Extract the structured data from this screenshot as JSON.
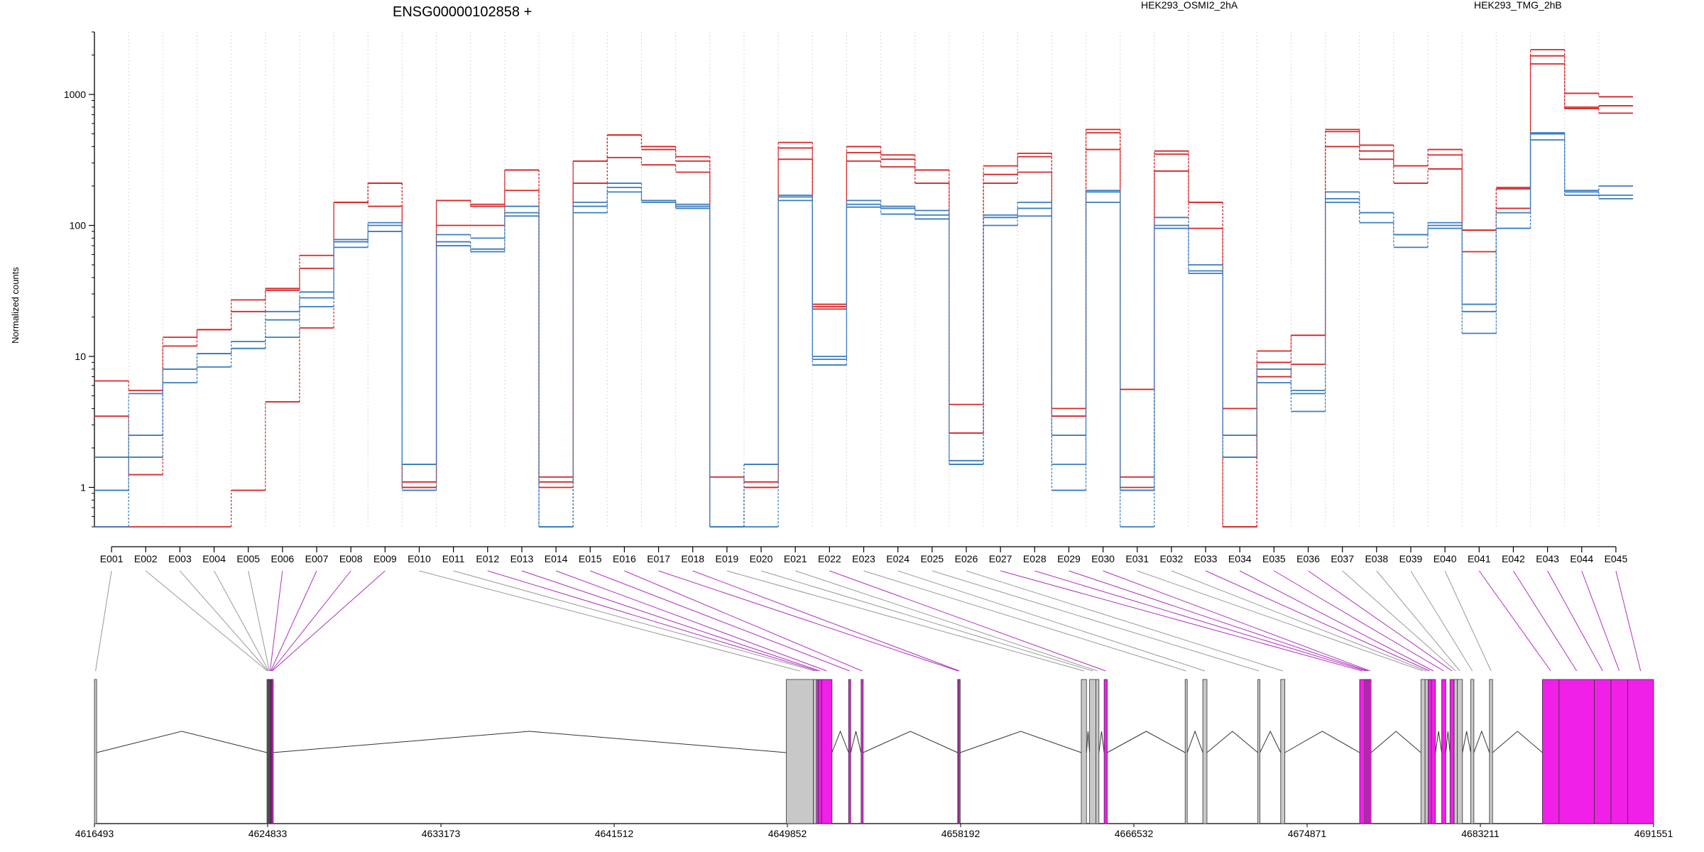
{
  "chart_data": {
    "type": "line",
    "title": "ENSG00000102858 +",
    "ylabel": "Normalized counts",
    "yscale": "log",
    "ylim": [
      0.5,
      3000
    ],
    "yticks": [
      "1",
      "10",
      "100",
      "1000"
    ],
    "grid": "vertical dotted lines at exon boundaries",
    "legend_position": "top-right",
    "legend": [
      {
        "label": "HEK293_OSMI2_2hA",
        "color": "#d62728"
      },
      {
        "label": "HEK293_TMG_2hB",
        "color": "#3a7dbf"
      }
    ],
    "categories": [
      "E001",
      "E002",
      "E003",
      "E004",
      "E005",
      "E006",
      "E007",
      "E008",
      "E009",
      "E010",
      "E011",
      "E012",
      "E013",
      "E014",
      "E015",
      "E016",
      "E017",
      "E018",
      "E019",
      "E020",
      "E021",
      "E022",
      "E023",
      "E024",
      "E025",
      "E026",
      "E027",
      "E028",
      "E029",
      "E030",
      "E031",
      "E032",
      "E033",
      "E034",
      "E035",
      "E036",
      "E037",
      "E038",
      "E039",
      "E040",
      "E041",
      "E042",
      "E043",
      "E044",
      "E045"
    ],
    "series": [
      {
        "name": "HEK293_OSMI2_2hA",
        "values": [
          6.5,
          5.5,
          14,
          16,
          27,
          33,
          59,
          150,
          210,
          1.1,
          155,
          145,
          265,
          1.2,
          310,
          490,
          400,
          335,
          1.2,
          1.1,
          430,
          25,
          400,
          345,
          265,
          4.3,
          285,
          355,
          4.0,
          540,
          1.2,
          370,
          150,
          4.0,
          11,
          14.5,
          540,
          410,
          285,
          380,
          92,
          195,
          2200,
          1020,
          960
        ]
      },
      {
        "name": "HEK293_OSMI2_2hA",
        "values": [
          3.5,
          1.25,
          12,
          16,
          22,
          32,
          47,
          150,
          210,
          1.0,
          155,
          140,
          265,
          1.1,
          310,
          490,
          380,
          310,
          0.5,
          1.0,
          390,
          24,
          360,
          320,
          265,
          2.6,
          245,
          335,
          3.5,
          510,
          1.0,
          350,
          150,
          0.5,
          9,
          14.5,
          520,
          370,
          285,
          345,
          92,
          190,
          1970,
          800,
          820
        ]
      },
      {
        "name": "HEK293_OSMI2_2hA",
        "values": [
          0.5,
          0.5,
          0.5,
          0.5,
          0.95,
          4.5,
          16.5,
          150,
          140,
          1.0,
          100,
          100,
          185,
          1.0,
          210,
          330,
          290,
          255,
          0.5,
          1.0,
          320,
          23,
          310,
          280,
          210,
          2.6,
          210,
          255,
          3.5,
          380,
          5.6,
          260,
          95,
          0.5,
          7,
          8.7,
          400,
          320,
          210,
          270,
          63,
          135,
          1710,
          780,
          720
        ]
      },
      {
        "name": "HEK293_TMG_2hB",
        "values": [
          1.7,
          2.5,
          8,
          10.5,
          13,
          22,
          31,
          78,
          105,
          1.5,
          85,
          80,
          140,
          0.5,
          150,
          210,
          155,
          145,
          0.5,
          1.5,
          170,
          10,
          155,
          140,
          130,
          1.5,
          120,
          150,
          2.5,
          185,
          0.5,
          115,
          50,
          2.5,
          8,
          5.5,
          180,
          125,
          85,
          105,
          25,
          125,
          510,
          185,
          200
        ]
      },
      {
        "name": "HEK293_TMG_2hB",
        "values": [
          0.95,
          5.2,
          8,
          10.5,
          11.5,
          19,
          28,
          75,
          100,
          1.5,
          75,
          66,
          125,
          0.5,
          140,
          195,
          155,
          140,
          0.5,
          1.5,
          165,
          9.5,
          145,
          135,
          120,
          1.5,
          115,
          135,
          1.5,
          180,
          0.95,
          100,
          45,
          1.7,
          8,
          5.2,
          160,
          125,
          85,
          100,
          22,
          95,
          500,
          180,
          170
        ]
      },
      {
        "name": "HEK293_TMG_2hB",
        "values": [
          0.5,
          1.7,
          6.3,
          8.3,
          11.5,
          14,
          24,
          68,
          90,
          0.95,
          70,
          63,
          118,
          0.5,
          125,
          180,
          150,
          135,
          0.5,
          0.5,
          155,
          8.6,
          138,
          122,
          112,
          1.6,
          100,
          118,
          0.95,
          150,
          0.95,
          95,
          43,
          1.7,
          6.3,
          3.8,
          150,
          105,
          68,
          95,
          15,
          95,
          450,
          170,
          160
        ]
      }
    ],
    "gene_axis": {
      "xlabel_ticks": [
        "4616493",
        "4624833",
        "4633173",
        "4641512",
        "4649852",
        "4658192",
        "4666532",
        "4674871",
        "4683211",
        "4691551"
      ],
      "range": [
        4616493,
        4691551
      ],
      "exon_colors": {
        "default": "#c8c8c8",
        "highlighted": "#f020e8"
      },
      "highlighted_exons": [
        "E006",
        "E007",
        "E008",
        "E009",
        "E012",
        "E013",
        "E014",
        "E015",
        "E016",
        "E017",
        "E018",
        "E022",
        "E027",
        "E028",
        "E029",
        "E030",
        "E033",
        "E034",
        "E035",
        "E036",
        "E041",
        "E042",
        "E043",
        "E044",
        "E045"
      ]
    }
  }
}
